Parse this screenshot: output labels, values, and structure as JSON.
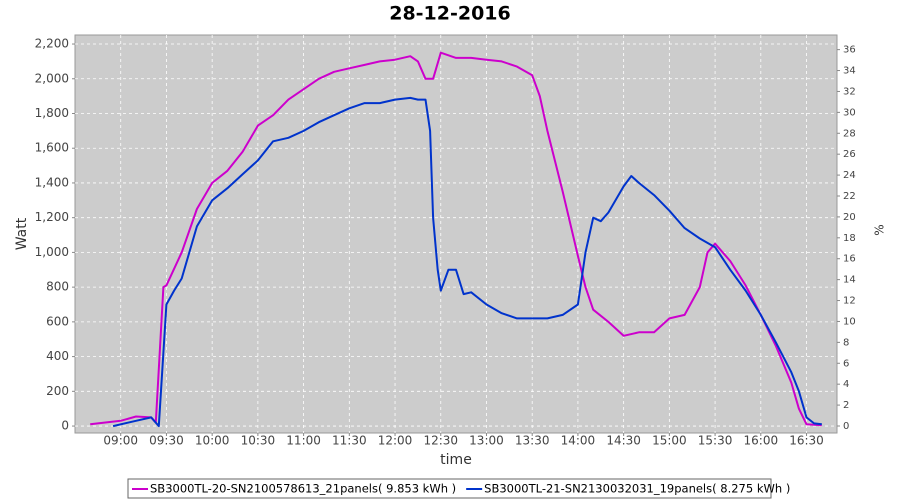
{
  "chart_data": {
    "type": "line",
    "title": "28-12-2016",
    "x_label": "time",
    "y_label": "Watt",
    "y2_label": "%",
    "xlim": [
      "08:30",
      "16:50"
    ],
    "xticks": [
      "09:00",
      "09:30",
      "10:00",
      "10:30",
      "11:00",
      "11:30",
      "12:00",
      "12:30",
      "13:00",
      "13:30",
      "14:00",
      "14:30",
      "15:00",
      "15:30",
      "16:00",
      "16:30"
    ],
    "ylim": [
      -40,
      2252
    ],
    "yticks": [
      0,
      200,
      400,
      600,
      800,
      {
        "value": 1000,
        "label": "1,000"
      },
      {
        "value": 1200,
        "label": "1,200"
      },
      {
        "value": 1400,
        "label": "1,400"
      },
      {
        "value": 1600,
        "label": "1,600"
      },
      {
        "value": 1800,
        "label": "1,800"
      },
      {
        "value": 2000,
        "label": "2,000"
      },
      {
        "value": 2200,
        "label": "2,200"
      }
    ],
    "y2lim": [
      -0.67,
      37.4
    ],
    "y2ticks": [
      0,
      2,
      4,
      6,
      8,
      10,
      12,
      14,
      16,
      18,
      20,
      22,
      24,
      26,
      28,
      30,
      32,
      34,
      36
    ],
    "grid": true,
    "legend": "bottom",
    "series": [
      {
        "name": "SB3000TL-20-SN2100578613_21panels( 9.853 kWh )",
        "color": "#cc00cc",
        "x": [
          "08:40",
          "09:00",
          "09:10",
          "09:20",
          "09:23",
          "09:28",
          "09:30",
          "09:40",
          "09:50",
          "10:00",
          "10:10",
          "10:20",
          "10:30",
          "10:40",
          "10:50",
          "11:00",
          "11:10",
          "11:20",
          "11:30",
          "11:40",
          "11:50",
          "12:00",
          "12:10",
          "12:15",
          "12:20",
          "12:25",
          "12:30",
          "12:40",
          "12:50",
          "13:00",
          "13:10",
          "13:20",
          "13:30",
          "13:35",
          "13:40",
          "13:50",
          "14:00",
          "14:05",
          "14:10",
          "14:20",
          "14:30",
          "14:40",
          "14:50",
          "15:00",
          "15:10",
          "15:20",
          "15:25",
          "15:30",
          "15:40",
          "15:50",
          "16:00",
          "16:10",
          "16:20",
          "16:25",
          "16:30",
          "16:40"
        ],
        "values": [
          10,
          30,
          55,
          50,
          20,
          800,
          810,
          1000,
          1250,
          1400,
          1470,
          1580,
          1730,
          1790,
          1880,
          1940,
          2000,
          2040,
          2060,
          2080,
          2100,
          2110,
          2130,
          2100,
          2000,
          2000,
          2150,
          2120,
          2120,
          2110,
          2100,
          2070,
          2020,
          1900,
          1700,
          1350,
          980,
          800,
          670,
          600,
          520,
          540,
          540,
          620,
          640,
          800,
          1000,
          1050,
          950,
          810,
          640,
          460,
          250,
          100,
          10,
          5
        ]
      },
      {
        "name": "SB3000TL-21-SN2130032031_19panels( 8.275 kWh )",
        "color": "#0033cc",
        "x": [
          "08:55",
          "09:10",
          "09:20",
          "09:25",
          "09:30",
          "09:35",
          "09:40",
          "09:50",
          "10:00",
          "10:10",
          "10:20",
          "10:30",
          "10:40",
          "10:50",
          "11:00",
          "11:10",
          "11:20",
          "11:30",
          "11:40",
          "11:50",
          "12:00",
          "12:10",
          "12:15",
          "12:20",
          "12:23",
          "12:25",
          "12:28",
          "12:30",
          "12:35",
          "12:40",
          "12:45",
          "12:50",
          "13:00",
          "13:10",
          "13:20",
          "13:30",
          "13:40",
          "13:50",
          "14:00",
          "14:05",
          "14:10",
          "14:15",
          "14:20",
          "14:30",
          "14:35",
          "14:40",
          "14:50",
          "15:00",
          "15:10",
          "15:20",
          "15:30",
          "15:40",
          "15:50",
          "16:00",
          "16:10",
          "16:20",
          "16:25",
          "16:30",
          "16:35",
          "16:40"
        ],
        "values": [
          0,
          30,
          50,
          0,
          700,
          780,
          850,
          1150,
          1300,
          1370,
          1450,
          1530,
          1640,
          1660,
          1700,
          1750,
          1790,
          1830,
          1860,
          1860,
          1880,
          1890,
          1880,
          1880,
          1700,
          1200,
          900,
          780,
          900,
          900,
          760,
          770,
          700,
          650,
          620,
          620,
          620,
          640,
          700,
          1000,
          1200,
          1180,
          1230,
          1380,
          1440,
          1400,
          1330,
          1240,
          1140,
          1080,
          1030,
          900,
          780,
          640,
          480,
          310,
          200,
          50,
          15,
          10
        ]
      }
    ]
  }
}
